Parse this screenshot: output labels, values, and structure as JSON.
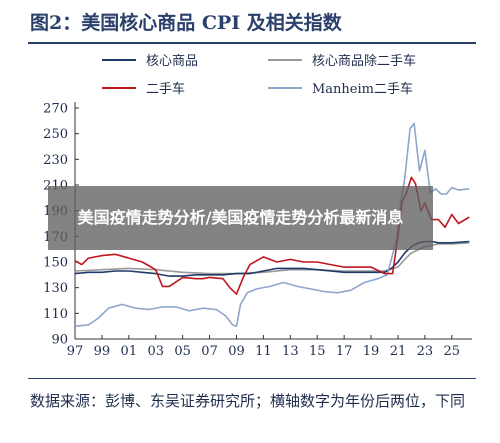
{
  "figure": {
    "title": "图2：美国核心商品 CPI 及相关指数",
    "source_note": "数据来源：彭博、东吴证券研究所；横轴数字为年份后两位，下同"
  },
  "overlay": {
    "text": "美国疫情走势分析/美国疫情走势分析最新消息"
  },
  "chart_data": {
    "type": "line",
    "title": "",
    "xlabel": "",
    "ylabel": "",
    "x_ticks": [
      "97",
      "99",
      "01",
      "03",
      "05",
      "07",
      "09",
      "11",
      "13",
      "15",
      "17",
      "19",
      "21",
      "23",
      "25"
    ],
    "y_ticks": [
      "90",
      "110",
      "130",
      "150",
      "170",
      "190",
      "210",
      "230",
      "250",
      "270"
    ],
    "xlim": [
      1997,
      2026.5
    ],
    "ylim": [
      90,
      270
    ],
    "grid": false,
    "legend_position": "top",
    "series": [
      {
        "name": "核心商品",
        "color": "#1f3a68",
        "x": [
          1997,
          1998,
          1999,
          2000,
          2001,
          2002,
          2003,
          2004,
          2005,
          2006,
          2007,
          2008,
          2009,
          2010,
          2011,
          2012,
          2013,
          2014,
          2015,
          2016,
          2017,
          2018,
          2019,
          2020,
          2020.5,
          2021,
          2021.5,
          2022,
          2022.5,
          2023,
          2023.5,
          2024,
          2025,
          2026.3
        ],
        "y": [
          141,
          142,
          142,
          143,
          143,
          142,
          141,
          139,
          139,
          140,
          140,
          140,
          141,
          141,
          143,
          145,
          145,
          145,
          144,
          143,
          142,
          142,
          142,
          142,
          145,
          150,
          157,
          162,
          165,
          166,
          166,
          165,
          165,
          166
        ]
      },
      {
        "name": "核心商品除二手车",
        "color": "#9a9a9a",
        "x": [
          1997,
          1999,
          2001,
          2003,
          2005,
          2007,
          2009,
          2011,
          2013,
          2015,
          2017,
          2019,
          2020,
          2021,
          2021.5,
          2022,
          2023,
          2024,
          2025,
          2026.3
        ],
        "y": [
          143,
          144,
          145,
          144,
          142,
          141,
          141,
          142,
          144,
          144,
          143,
          143,
          143,
          146,
          152,
          157,
          162,
          164,
          164,
          165
        ]
      },
      {
        "name": "二手车",
        "color": "#c0161f",
        "x": [
          1997,
          1997.5,
          1998,
          1999,
          2000,
          2001,
          2002,
          2003,
          2003.5,
          2004,
          2005,
          2006,
          2006.5,
          2007,
          2008,
          2008.5,
          2009,
          2009.5,
          2010,
          2011,
          2012,
          2013,
          2014,
          2015,
          2016,
          2017,
          2018,
          2019,
          2020,
          2020.6,
          2021,
          2021.3,
          2021.6,
          2022,
          2022.3,
          2022.7,
          2023,
          2023.5,
          2024,
          2024.5,
          2025,
          2025.5,
          2026.3
        ],
        "y": [
          151,
          148,
          153,
          155,
          156,
          153,
          150,
          144,
          131,
          131,
          138,
          137,
          137,
          138,
          137,
          130,
          125,
          138,
          148,
          154,
          150,
          152,
          150,
          150,
          148,
          146,
          146,
          146,
          141,
          141,
          170,
          197,
          203,
          216,
          211,
          190,
          196,
          183,
          183,
          177,
          187,
          180,
          185
        ]
      },
      {
        "name": "Manheim二手车",
        "color": "#8fa6cc",
        "x": [
          1997,
          1998,
          1998.7,
          1999.5,
          2000.5,
          2001.5,
          2002.5,
          2003.5,
          2004.5,
          2005.5,
          2006.5,
          2007.5,
          2008.2,
          2008.7,
          2009,
          2009.3,
          2009.8,
          2010.5,
          2011.5,
          2012.5,
          2013.5,
          2014.5,
          2015.5,
          2016.5,
          2017.5,
          2018.5,
          2019.5,
          2020.2,
          2020.5,
          2020.9,
          2021.2,
          2021.5,
          2021.9,
          2022.2,
          2022.6,
          2023,
          2023.4,
          2023.8,
          2024.2,
          2024.6,
          2025,
          2025.5,
          2026.3
        ],
        "y": [
          100,
          101,
          106,
          114,
          117,
          114,
          113,
          115,
          115,
          112,
          114,
          113,
          108,
          101,
          100,
          117,
          126,
          129,
          131,
          134,
          131,
          129,
          127,
          126,
          128,
          134,
          137,
          140,
          152,
          168,
          196,
          215,
          254,
          258,
          221,
          237,
          204,
          207,
          203,
          203,
          208,
          206,
          207
        ]
      }
    ]
  }
}
